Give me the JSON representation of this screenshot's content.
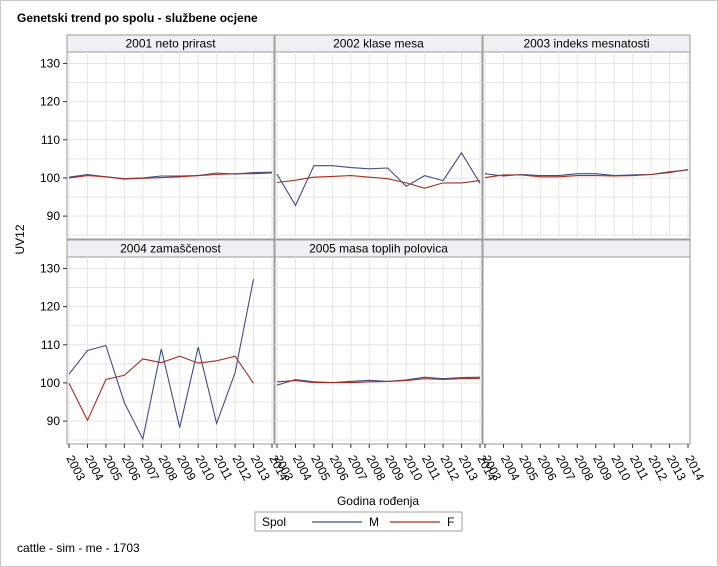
{
  "title": "Genetski trend po spolu - službene ocjene",
  "footnote": "cattle - sim - me - 1703",
  "chart_data": {
    "type": "line",
    "layout": "panel grid 3x2",
    "title": "Genetski trend po spolu - službene ocjene",
    "xlabel": "Godina rođenja",
    "ylabel": "UV12",
    "x": [
      2003,
      2004,
      2005,
      2006,
      2007,
      2008,
      2009,
      2010,
      2011,
      2012,
      2013,
      2014
    ],
    "ylim": [
      84,
      133
    ],
    "yticks": [
      90,
      100,
      110,
      120,
      130
    ],
    "grid": true,
    "legend": {
      "title": "Spol",
      "position": "bottom",
      "entries": [
        {
          "name": "M",
          "color": "#3f4f86"
        },
        {
          "name": "F",
          "color": "#a33022"
        }
      ]
    },
    "panels": [
      {
        "label": "2001 neto prirast",
        "series": [
          {
            "name": "M",
            "values": [
              100.2,
              100.9,
              100.3,
              99.8,
              100.0,
              100.5,
              100.5,
              100.6,
              101.3,
              101.0,
              101.4,
              101.5
            ]
          },
          {
            "name": "F",
            "values": [
              100.0,
              100.6,
              100.3,
              99.7,
              99.9,
              100.1,
              100.3,
              100.6,
              100.9,
              101.1,
              101.1,
              101.3
            ]
          }
        ]
      },
      {
        "label": "2002 klase mesa",
        "series": [
          {
            "name": "M",
            "values": [
              101.0,
              92.8,
              103.2,
              103.2,
              102.7,
              102.4,
              102.6,
              97.8,
              100.6,
              99.3,
              106.6,
              98.6
            ]
          },
          {
            "name": "F",
            "values": [
              98.8,
              99.4,
              100.2,
              100.4,
              100.6,
              100.2,
              99.8,
              98.7,
              97.3,
              98.7,
              98.7,
              99.3
            ]
          }
        ]
      },
      {
        "label": "2003 indeks mesnatosti",
        "series": [
          {
            "name": "M",
            "values": [
              101.1,
              100.5,
              100.9,
              100.6,
              100.6,
              101.1,
              101.1,
              100.6,
              100.8,
              100.9,
              101.6,
              102.1
            ]
          },
          {
            "name": "F",
            "values": [
              100.1,
              100.8,
              100.8,
              100.3,
              100.3,
              100.6,
              100.6,
              100.5,
              100.6,
              100.9,
              101.4,
              102.2
            ]
          }
        ]
      },
      {
        "label": "2004 zamaščenost",
        "series": [
          {
            "name": "M",
            "values": [
              102.3,
              108.5,
              109.8,
              94.8,
              85.3,
              108.9,
              88.3,
              109.4,
              89.4,
              102.7,
              127.2,
              null
            ]
          },
          {
            "name": "F",
            "values": [
              99.9,
              90.2,
              100.9,
              102.0,
              106.3,
              105.3,
              107.0,
              105.2,
              105.8,
              107.0,
              99.9,
              null
            ]
          }
        ]
      },
      {
        "label": "2005 masa toplih polovica",
        "series": [
          {
            "name": "M",
            "values": [
              99.4,
              100.9,
              100.3,
              100.1,
              100.4,
              100.7,
              100.4,
              100.8,
              101.5,
              101.1,
              101.4,
              101.5
            ]
          },
          {
            "name": "F",
            "values": [
              100.3,
              100.6,
              100.1,
              100.1,
              100.1,
              100.3,
              100.4,
              100.6,
              101.1,
              100.9,
              101.1,
              101.2
            ]
          }
        ]
      }
    ]
  }
}
